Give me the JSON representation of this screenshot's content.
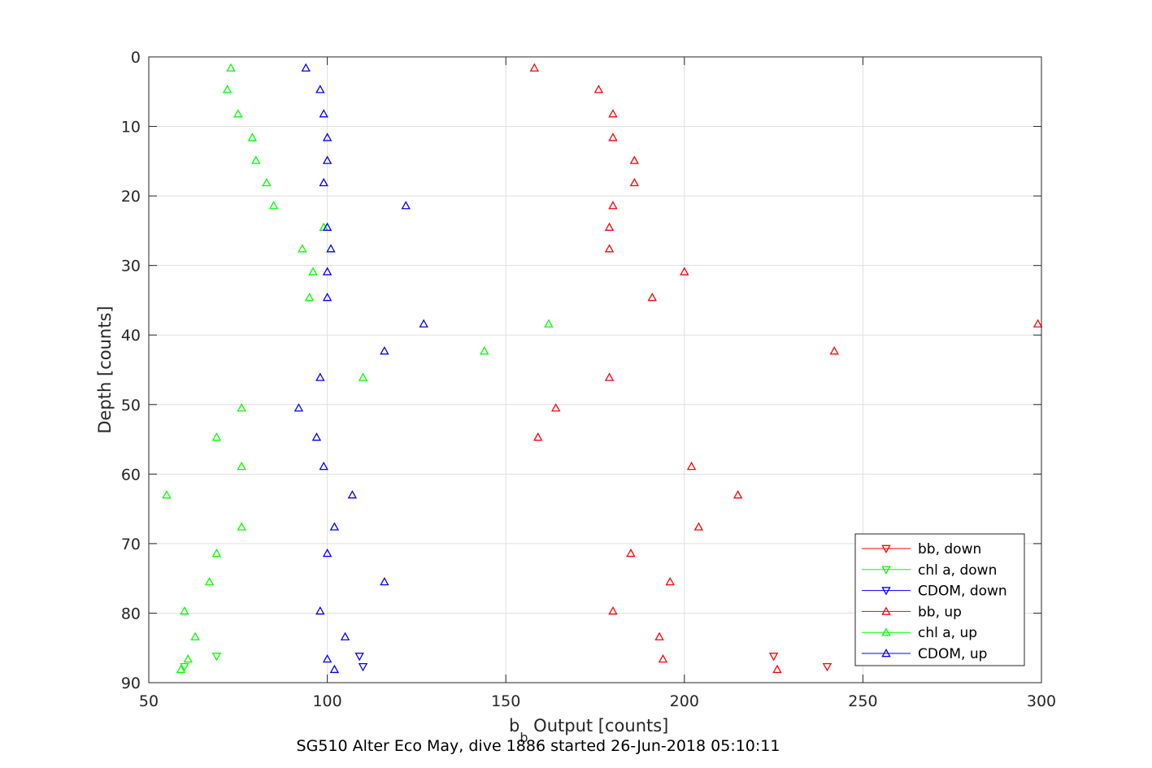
{
  "chart_data": {
    "type": "scatter",
    "title": "",
    "xlabel_main": "b",
    "xlabel_sub": "b",
    "xlabel_rest": " Output [counts]",
    "ylabel": "Depth [counts]",
    "footer": "SG510 Alter Eco May, dive 1886 started 26-Jun-2018 05:10:11",
    "xlim": [
      50,
      300
    ],
    "ylim": [
      0,
      90
    ],
    "y_reversed": true,
    "grid": true,
    "legend_position": "bottom-right",
    "x_ticks": [
      50,
      100,
      150,
      200,
      250,
      300
    ],
    "x_tick_labels": [
      "50",
      "100",
      "150",
      "200",
      "250",
      "300"
    ],
    "y_ticks": [
      0,
      10,
      20,
      30,
      40,
      50,
      60,
      70,
      80,
      90
    ],
    "y_tick_labels": [
      "0",
      "10",
      "20",
      "30",
      "40",
      "50",
      "60",
      "70",
      "80",
      "90"
    ],
    "series": [
      {
        "name": "bb, down",
        "color": "#ff0000",
        "marker": "triangle-down",
        "points": [
          [
            225,
            86.2
          ],
          [
            240,
            87.7
          ]
        ]
      },
      {
        "name": "chl a, down",
        "color": "#00ff00",
        "marker": "triangle-down",
        "points": [
          [
            69,
            86.2
          ],
          [
            60,
            87.7
          ]
        ]
      },
      {
        "name": "CDOM, down",
        "color": "#0000ff",
        "marker": "triangle-down",
        "points": [
          [
            109,
            86.2
          ],
          [
            110,
            87.7
          ]
        ]
      },
      {
        "name": "bb, up",
        "color": "#ff0000",
        "marker": "triangle-up",
        "points": [
          [
            158,
            1.6
          ],
          [
            176,
            4.7
          ],
          [
            180,
            8.2
          ],
          [
            180,
            11.6
          ],
          [
            186,
            14.9
          ],
          [
            186,
            18.1
          ],
          [
            180,
            21.4
          ],
          [
            179,
            24.5
          ],
          [
            179,
            27.6
          ],
          [
            200,
            30.9
          ],
          [
            191,
            34.6
          ],
          [
            299,
            38.4
          ],
          [
            242,
            42.3
          ],
          [
            179,
            46.1
          ],
          [
            164,
            50.5
          ],
          [
            159,
            54.7
          ],
          [
            202,
            58.9
          ],
          [
            215,
            63.0
          ],
          [
            204,
            67.6
          ],
          [
            185,
            71.4
          ],
          [
            196,
            75.5
          ],
          [
            180,
            79.7
          ],
          [
            193,
            83.4
          ],
          [
            194,
            86.6
          ],
          [
            226,
            88.1
          ]
        ]
      },
      {
        "name": "chl a, up",
        "color": "#00ff00",
        "marker": "triangle-up",
        "points": [
          [
            73,
            1.6
          ],
          [
            72,
            4.7
          ],
          [
            75,
            8.2
          ],
          [
            79,
            11.6
          ],
          [
            80,
            14.9
          ],
          [
            83,
            18.1
          ],
          [
            85,
            21.4
          ],
          [
            99,
            24.5
          ],
          [
            93,
            27.6
          ],
          [
            96,
            30.9
          ],
          [
            95,
            34.6
          ],
          [
            162,
            38.4
          ],
          [
            144,
            42.3
          ],
          [
            110,
            46.1
          ],
          [
            76,
            50.5
          ],
          [
            69,
            54.7
          ],
          [
            76,
            58.9
          ],
          [
            55,
            63.0
          ],
          [
            76,
            67.6
          ],
          [
            69,
            71.4
          ],
          [
            67,
            75.5
          ],
          [
            60,
            79.7
          ],
          [
            63,
            83.4
          ],
          [
            61,
            86.6
          ],
          [
            59,
            88.1
          ]
        ]
      },
      {
        "name": "CDOM, up",
        "color": "#0000ff",
        "marker": "triangle-up",
        "points": [
          [
            94,
            1.6
          ],
          [
            98,
            4.7
          ],
          [
            99,
            8.2
          ],
          [
            100,
            11.6
          ],
          [
            100,
            14.9
          ],
          [
            99,
            18.1
          ],
          [
            122,
            21.4
          ],
          [
            100,
            24.5
          ],
          [
            101,
            27.6
          ],
          [
            100,
            30.9
          ],
          [
            100,
            34.6
          ],
          [
            127,
            38.4
          ],
          [
            116,
            42.3
          ],
          [
            98,
            46.1
          ],
          [
            92,
            50.5
          ],
          [
            97,
            54.7
          ],
          [
            99,
            58.9
          ],
          [
            107,
            63.0
          ],
          [
            102,
            67.6
          ],
          [
            100,
            71.4
          ],
          [
            116,
            75.5
          ],
          [
            98,
            79.7
          ],
          [
            105,
            83.4
          ],
          [
            100,
            86.6
          ],
          [
            102,
            88.1
          ]
        ]
      }
    ]
  }
}
